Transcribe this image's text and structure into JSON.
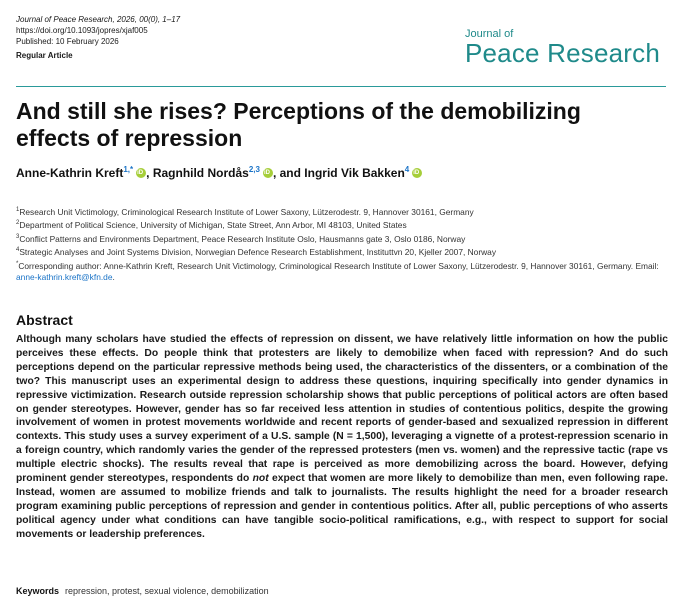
{
  "header": {
    "citation": "Journal of Peace Research, 2026, 00(0), 1–17",
    "doi": "https://doi.org/10.1093/jopres/xjaf005",
    "published": "Published: 10 February 2026",
    "article_type": "Regular Article",
    "logo_small": "Journal of",
    "logo_big": "Peace Research"
  },
  "title": "And still she rises? Perceptions of the demobilizing effects of repression",
  "authors": [
    {
      "name": "Anne-Kathrin Kreft",
      "sup": "1,*"
    },
    {
      "name": "Ragnhild Nordås",
      "sup": "2,3"
    },
    {
      "name": "Ingrid Vik Bakken",
      "sup": "4"
    }
  ],
  "authors_sep1": ", ",
  "authors_sep2": ", and ",
  "affiliations": [
    {
      "num": "1",
      "text": "Research Unit Victimology, Criminological Research Institute of Lower Saxony, Lützerodestr. 9, Hannover 30161, Germany"
    },
    {
      "num": "2",
      "text": "Department of Political Science, University of Michigan, State Street, Ann Arbor, MI 48103, United States"
    },
    {
      "num": "3",
      "text": "Conflict Patterns and Environments Department, Peace Research Institute Oslo, Hausmanns gate 3, Oslo 0186, Norway"
    },
    {
      "num": "4",
      "text": "Strategic Analyses and Joint Systems Division, Norwegian Defence Research Establishment, Instituttvn 20, Kjeller 2007, Norway"
    }
  ],
  "corresponding": {
    "marker": "*",
    "text": "Corresponding author: Anne-Kathrin Kreft, Research Unit Victimology, Criminological Research Institute of Lower Saxony, Lützerodestr. 9, Hannover 30161, Germany. Email: ",
    "email": "anne-kathrin.kreft@kfn.de",
    "end": "."
  },
  "abstract": {
    "heading": "Abstract",
    "part1": "Although many scholars have studied the effects of repression on dissent, we have relatively little information on how the public perceives these effects. Do people think that protesters are likely to demobilize when faced with repression? And do such perceptions depend on the particular repressive methods being used, the characteristics of the dissenters, or a combination of the two? This manuscript uses an experimental design to address these questions, inquiring specifically into gender dynamics in repressive victimization. Research outside repression scholarship shows that public perceptions of political actors are often based on gender stereotypes. However, gender has so far received less attention in studies of contentious politics, despite the growing involvement of women in protest movements worldwide and recent reports of gender-based and sexualized repression in different contexts. This study uses a survey experiment of a U.S. sample (N = 1,500), leveraging a vignette of a protest-repression scenario in a foreign country, which randomly varies the gender of the repressed protesters (men vs. women) and the repressive tactic (rape vs multiple electric shocks). The results reveal that rape is perceived as more demobilizing across the board. However, defying prominent gender stereotypes, respondents do ",
    "emphasis": "not",
    "part2": " expect that women are more likely to demobilize than men, even following rape. Instead, women are assumed to mobilize friends and talk to journalists. The results highlight the need for a broader research program examining public perceptions of repression and gender in contentious politics. After all, public perceptions of who asserts political agency under what conditions can have tangible socio-political ramifications, e.g., with respect to support for social movements or leadership preferences."
  },
  "keywords": {
    "label": "Keywords",
    "text": "repression, protest, sexual violence, demobilization"
  },
  "colors": {
    "accent": "#1f8a8a",
    "link": "#1a73c7",
    "orcid": "#a6ce39"
  }
}
